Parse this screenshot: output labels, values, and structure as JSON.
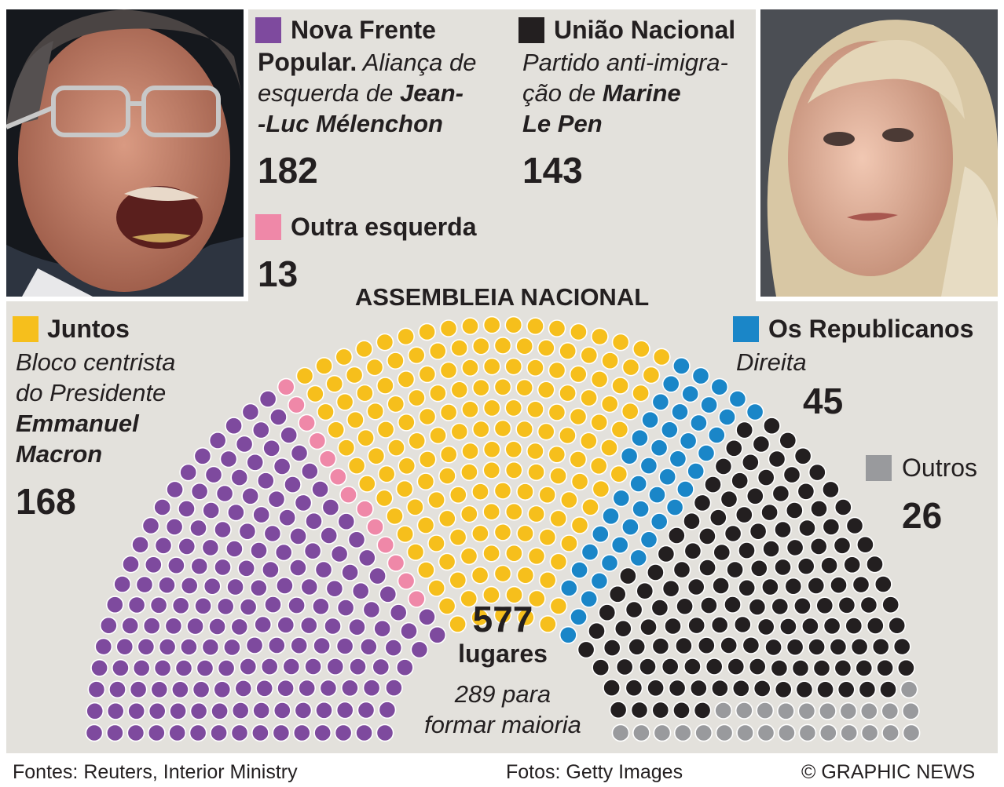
{
  "header": {
    "title": "ASSEMBLEIA NACIONAL"
  },
  "parties": {
    "nfp": {
      "name": "Nova Frente",
      "name2": "Popular.",
      "desc1": "Aliança de",
      "desc2_a": "esquerda de ",
      "desc2_b": "Jean-",
      "desc3": "-Luc Mélenchon",
      "seats": "182",
      "color": "#7e4a9e"
    },
    "rn": {
      "name": "União Nacional",
      "desc1": "Partido anti-imigra-",
      "desc2_a": "ção de ",
      "desc2_b": "Marine",
      "desc3": "Le Pen",
      "seats": "143",
      "color": "#231f20"
    },
    "other_left": {
      "name": "Outra esquerda",
      "seats": "13",
      "color": "#ef88a8"
    },
    "ens": {
      "name": "Juntos",
      "desc1": "Bloco centrista",
      "desc2": "do Presidente",
      "desc3": "Emmanuel",
      "desc4": "Macron",
      "seats": "168",
      "color": "#f6bf1c"
    },
    "lr": {
      "name": "Os Republicanos",
      "desc1": "Direita",
      "seats": "45",
      "color": "#1a86c8"
    },
    "others": {
      "name": "Outros",
      "seats": "26",
      "color": "#999a9d"
    }
  },
  "center": {
    "total": "577",
    "total_label": "lugares",
    "majority1": "289 para",
    "majority2": "formar maioria"
  },
  "footer": {
    "sources": "Fontes: Reuters, Interior Ministry",
    "photos": "Fotos: Getty Images",
    "credit": "© GRAPHIC NEWS"
  },
  "chart_data": {
    "type": "parliament",
    "title": "ASSEMBLEIA NACIONAL",
    "total_seats": 577,
    "majority": 289,
    "series": [
      {
        "name": "Nova Frente Popular",
        "value": 182,
        "color": "#7e4a9e"
      },
      {
        "name": "Outra esquerda",
        "value": 13,
        "color": "#ef88a8"
      },
      {
        "name": "Juntos",
        "value": 168,
        "color": "#f6bf1c"
      },
      {
        "name": "Os Republicanos",
        "value": 45,
        "color": "#1a86c8"
      },
      {
        "name": "União Nacional",
        "value": 143,
        "color": "#231f20"
      },
      {
        "name": "Outros",
        "value": 26,
        "color": "#999a9d"
      }
    ]
  }
}
